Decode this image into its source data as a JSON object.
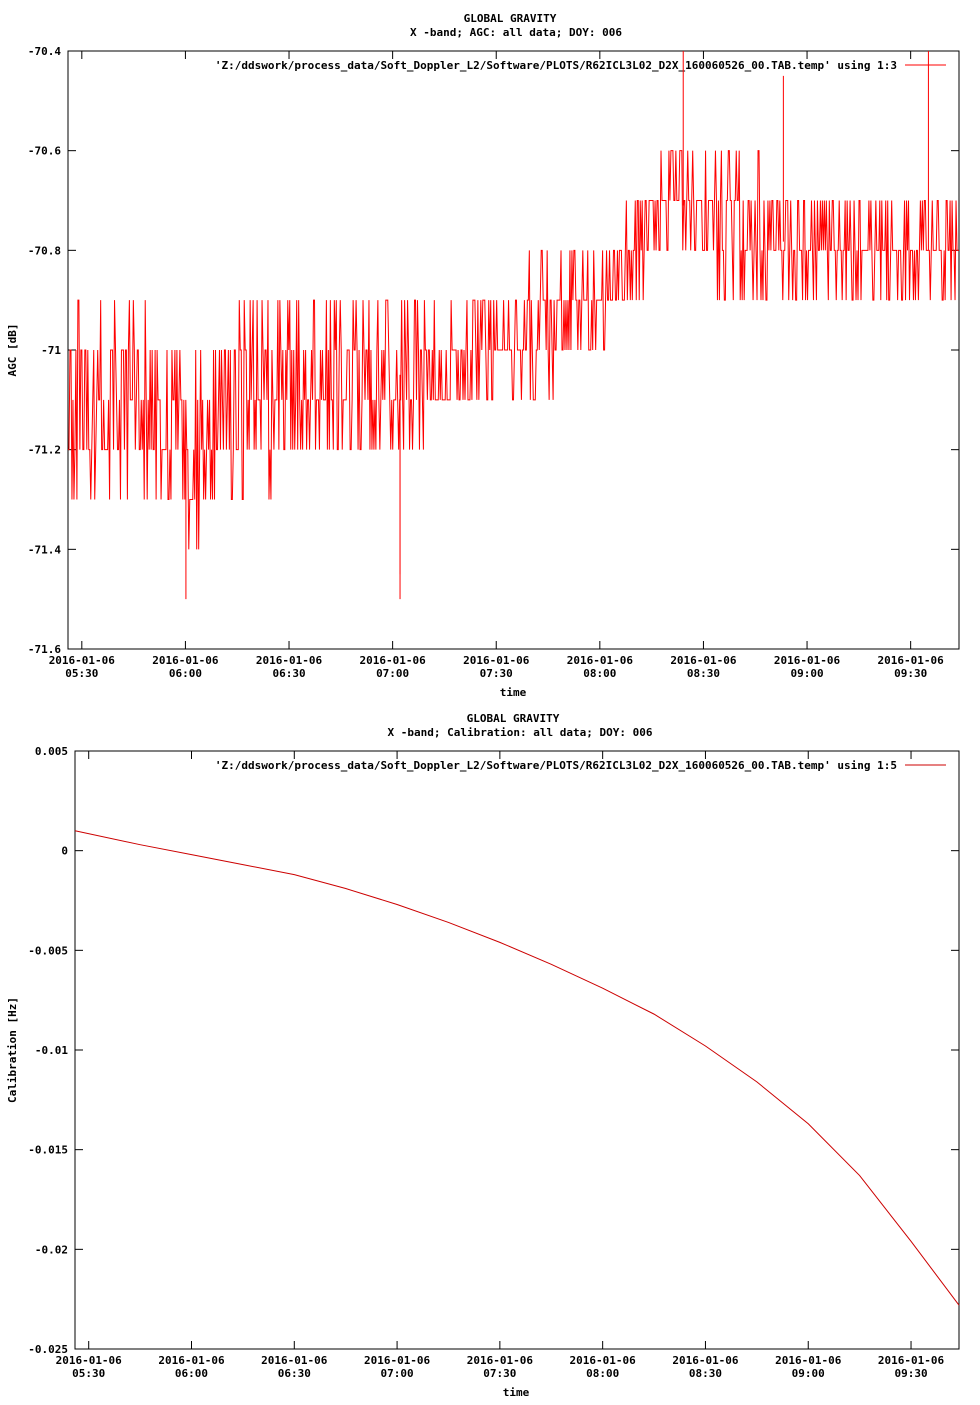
{
  "chart_data": [
    {
      "type": "line",
      "title": "GLOBAL GRAVITY",
      "subtitle": "X -band; AGC: all data; DOY: 006",
      "xlabel": "time",
      "ylabel": "AGC [dB]",
      "legend": "'Z:/ddswork/process_data/Soft_Doppler_L2/Software/PLOTS/R62ICL3L02_D2X_160060526_00.TAB.temp' using 1:3",
      "legend_position": "top-right",
      "series_color": "#ff0000",
      "x_time_range": [
        "05:26",
        "09:44"
      ],
      "xticks": [
        {
          "time": "05:30",
          "label": "2016-01-06\n05:30"
        },
        {
          "time": "06:00",
          "label": "2016-01-06\n06:00"
        },
        {
          "time": "06:30",
          "label": "2016-01-06\n06:30"
        },
        {
          "time": "07:00",
          "label": "2016-01-06\n07:00"
        },
        {
          "time": "07:30",
          "label": "2016-01-06\n07:30"
        },
        {
          "time": "08:00",
          "label": "2016-01-06\n08:00"
        },
        {
          "time": "08:30",
          "label": "2016-01-06\n08:30"
        },
        {
          "time": "09:00",
          "label": "2016-01-06\n09:00"
        },
        {
          "time": "09:30",
          "label": "2016-01-06\n09:30"
        }
      ],
      "yticks": [
        {
          "value": -70.4,
          "label": "-70.4"
        },
        {
          "value": -70.6,
          "label": "-70.6"
        },
        {
          "value": -70.8,
          "label": "-70.8"
        },
        {
          "value": -71.0,
          "label": "-71"
        },
        {
          "value": -71.2,
          "label": "-71.2"
        },
        {
          "value": -71.4,
          "label": "-71.4"
        },
        {
          "value": -71.6,
          "label": "-71.6"
        }
      ],
      "ylim": [
        -71.6,
        -70.4
      ],
      "trend": [
        {
          "time": "05:26",
          "low": -71.3,
          "high": -70.9
        },
        {
          "time": "05:45",
          "low": -71.3,
          "high": -70.9
        },
        {
          "time": "05:55",
          "low": -71.4,
          "high": -71.0
        },
        {
          "time": "06:05",
          "low": -71.4,
          "high": -71.0
        },
        {
          "time": "06:15",
          "low": -71.3,
          "high": -70.9
        },
        {
          "time": "06:40",
          "low": -71.2,
          "high": -70.9
        },
        {
          "time": "07:10",
          "low": -71.2,
          "high": -70.9
        },
        {
          "time": "07:30",
          "low": -71.1,
          "high": -70.9
        },
        {
          "time": "07:45",
          "low": -71.1,
          "high": -70.8
        },
        {
          "time": "08:00",
          "low": -71.0,
          "high": -70.8
        },
        {
          "time": "08:10",
          "low": -70.9,
          "high": -70.7
        },
        {
          "time": "08:20",
          "low": -70.8,
          "high": -70.6
        },
        {
          "time": "08:40",
          "low": -70.9,
          "high": -70.6
        },
        {
          "time": "09:00",
          "low": -70.9,
          "high": -70.7
        },
        {
          "time": "09:20",
          "low": -70.9,
          "high": -70.7
        },
        {
          "time": "09:44",
          "low": -70.9,
          "high": -70.7
        }
      ],
      "extremes": [
        {
          "time": "06:00",
          "value": -71.5
        },
        {
          "time": "07:02",
          "value": -71.5
        },
        {
          "time": "07:02",
          "value": -71.45
        },
        {
          "time": "08:24",
          "value": -70.4
        },
        {
          "time": "08:53",
          "value": -70.45
        },
        {
          "time": "09:35",
          "value": -70.4
        }
      ]
    },
    {
      "type": "line",
      "title": "GLOBAL GRAVITY",
      "subtitle": "X -band; Calibration: all data; DOY: 006",
      "xlabel": "time",
      "ylabel": "Calibration [Hz]",
      "legend": "'Z:/ddswork/process_data/Soft_Doppler_L2/Software/PLOTS/R62ICL3L02_D2X_160060526_00.TAB.temp' using 1:5",
      "legend_position": "top-right",
      "series_color": "#cc0000",
      "x_time_range": [
        "05:26",
        "09:44"
      ],
      "xticks": [
        {
          "time": "05:30",
          "label": "2016-01-06\n05:30"
        },
        {
          "time": "06:00",
          "label": "2016-01-06\n06:00"
        },
        {
          "time": "06:30",
          "label": "2016-01-06\n06:30"
        },
        {
          "time": "07:00",
          "label": "2016-01-06\n07:00"
        },
        {
          "time": "07:30",
          "label": "2016-01-06\n07:30"
        },
        {
          "time": "08:00",
          "label": "2016-01-06\n08:00"
        },
        {
          "time": "08:30",
          "label": "2016-01-06\n08:30"
        },
        {
          "time": "09:00",
          "label": "2016-01-06\n09:00"
        },
        {
          "time": "09:30",
          "label": "2016-01-06\n09:30"
        }
      ],
      "yticks": [
        {
          "value": 0.005,
          "label": "0.005"
        },
        {
          "value": 0.0,
          "label": "0"
        },
        {
          "value": -0.005,
          "label": "-0.005"
        },
        {
          "value": -0.01,
          "label": "-0.01"
        },
        {
          "value": -0.015,
          "label": "-0.015"
        },
        {
          "value": -0.02,
          "label": "-0.02"
        },
        {
          "value": -0.025,
          "label": "-0.025"
        }
      ],
      "ylim": [
        -0.025,
        0.005
      ],
      "points": [
        {
          "time": "05:26",
          "value": 0.001
        },
        {
          "time": "05:45",
          "value": 0.0003
        },
        {
          "time": "06:00",
          "value": -0.0002
        },
        {
          "time": "06:15",
          "value": -0.0007
        },
        {
          "time": "06:30",
          "value": -0.0012
        },
        {
          "time": "06:45",
          "value": -0.0019
        },
        {
          "time": "07:00",
          "value": -0.0027
        },
        {
          "time": "07:15",
          "value": -0.0036
        },
        {
          "time": "07:30",
          "value": -0.0046
        },
        {
          "time": "07:45",
          "value": -0.0057
        },
        {
          "time": "08:00",
          "value": -0.0069
        },
        {
          "time": "08:15",
          "value": -0.0082
        },
        {
          "time": "08:30",
          "value": -0.0098
        },
        {
          "time": "08:45",
          "value": -0.0116
        },
        {
          "time": "09:00",
          "value": -0.0137
        },
        {
          "time": "09:15",
          "value": -0.0163
        },
        {
          "time": "09:30",
          "value": -0.0196
        },
        {
          "time": "09:44",
          "value": -0.0228
        }
      ]
    }
  ]
}
